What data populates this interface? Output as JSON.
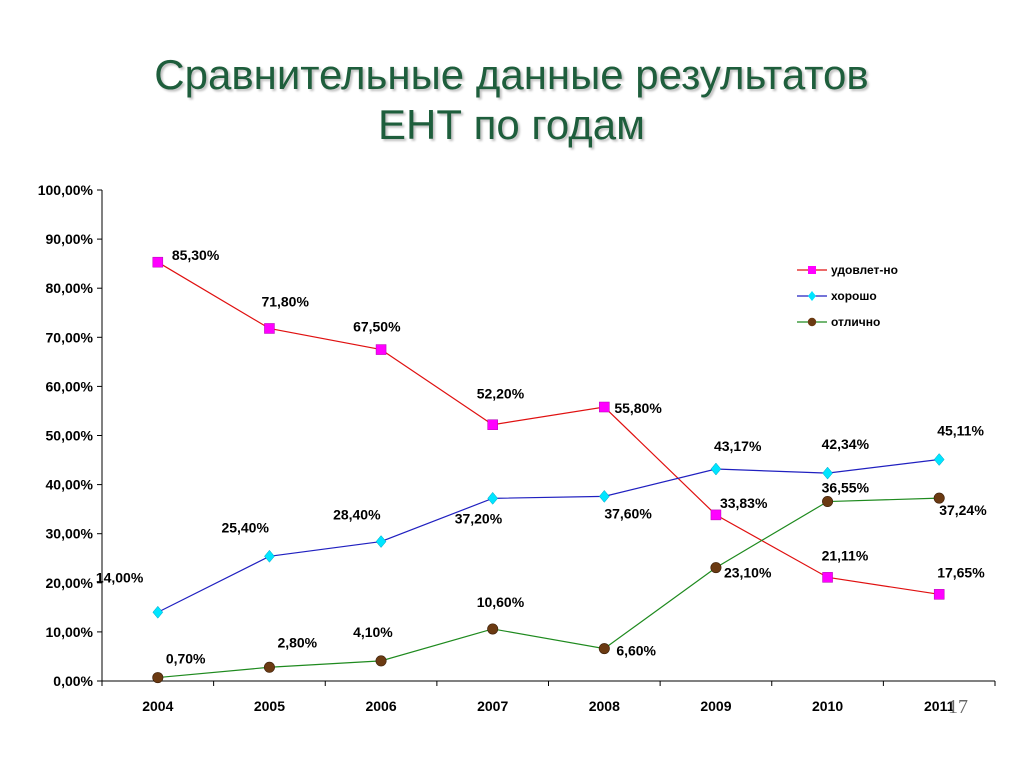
{
  "slide": {
    "title_line1": "Сравнительные данные результатов",
    "title_line2": "ЕНТ по годам",
    "page_number": "17"
  },
  "chart_data": {
    "type": "line",
    "x": [
      "2004",
      "2005",
      "2006",
      "2007",
      "2008",
      "2009",
      "2010",
      "2011"
    ],
    "ylim": [
      0,
      100
    ],
    "y_ticks": [
      "0,00%",
      "10,00%",
      "20,00%",
      "30,00%",
      "40,00%",
      "50,00%",
      "60,00%",
      "70,00%",
      "80,00%",
      "90,00%",
      "100,00%"
    ],
    "grid": false,
    "legend_position": "top-right",
    "series": [
      {
        "name": "удовлет-но",
        "color": "#e01010",
        "marker_color": "#ff00ff",
        "marker": "square",
        "values": [
          85.3,
          71.8,
          67.5,
          52.2,
          55.8,
          33.83,
          21.11,
          17.65
        ],
        "labels": [
          "85,30%",
          "71,80%",
          "67,50%",
          "52,20%",
          "55,80%",
          "33,83%",
          "21,11%",
          "17,65%"
        ]
      },
      {
        "name": "хорошо",
        "color": "#2020c0",
        "marker_color": "#00e5ff",
        "marker": "diamond",
        "values": [
          14.0,
          25.4,
          28.4,
          37.2,
          37.6,
          43.17,
          42.34,
          45.11
        ],
        "labels": [
          "14,00%",
          "25,40%",
          "28,40%",
          "37,20%",
          "37,60%",
          "43,17%",
          "42,34%",
          "45,11%"
        ]
      },
      {
        "name": "отлично",
        "color": "#1e8a1e",
        "marker_color": "#6b3a12",
        "marker": "circle",
        "values": [
          0.7,
          2.8,
          4.1,
          10.6,
          6.6,
          23.1,
          36.55,
          37.24
        ],
        "labels": [
          "0,70%",
          "2,80%",
          "4,10%",
          "10,60%",
          "6,60%",
          "23,10%",
          "36,55%",
          "37,24%"
        ]
      }
    ]
  }
}
